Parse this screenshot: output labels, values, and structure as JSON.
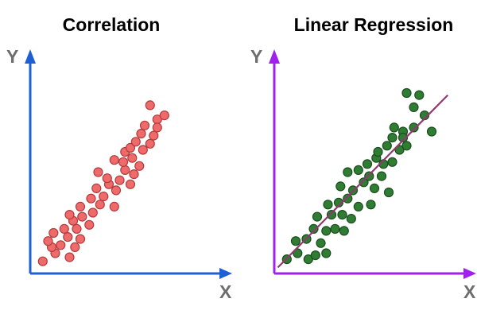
{
  "colors": {
    "left_axis": "#1f5fd6",
    "right_axis": "#a020f0",
    "left_point_fill": "#ef6b6b",
    "left_point_stroke": "#b23b3b",
    "right_point_fill": "#2e7d32",
    "right_point_stroke": "#1b4d1e",
    "regression_line": "#8e3a6e",
    "axis_letter": "#6e6e6e"
  },
  "chart_data": [
    {
      "type": "scatter",
      "title": "Correlation",
      "xlabel": "X",
      "ylabel": "Y",
      "xlim": [
        0,
        100
      ],
      "ylim": [
        0,
        100
      ],
      "grid": false,
      "points": [
        [
          7,
          6
        ],
        [
          14,
          10
        ],
        [
          12,
          13
        ],
        [
          22,
          8
        ],
        [
          10,
          16
        ],
        [
          17,
          14
        ],
        [
          25,
          13
        ],
        [
          21,
          18
        ],
        [
          28,
          17
        ],
        [
          13,
          20
        ],
        [
          19,
          22
        ],
        [
          26,
          22
        ],
        [
          24,
          26
        ],
        [
          33,
          24
        ],
        [
          29,
          28
        ],
        [
          22,
          29
        ],
        [
          35,
          30
        ],
        [
          28,
          33
        ],
        [
          34,
          37
        ],
        [
          39,
          34
        ],
        [
          47,
          33
        ],
        [
          41,
          38
        ],
        [
          37,
          42
        ],
        [
          44,
          44
        ],
        [
          48,
          41
        ],
        [
          50,
          46
        ],
        [
          43,
          47
        ],
        [
          38,
          50
        ],
        [
          53,
          51
        ],
        [
          56,
          44
        ],
        [
          52,
          55
        ],
        [
          47,
          56
        ],
        [
          57,
          57
        ],
        [
          58,
          49
        ],
        [
          61,
          53
        ],
        [
          53,
          60
        ],
        [
          63,
          61
        ],
        [
          56,
          62
        ],
        [
          59,
          65
        ],
        [
          62,
          69
        ],
        [
          67,
          64
        ],
        [
          64,
          73
        ],
        [
          67,
          83
        ],
        [
          69,
          68
        ],
        [
          71,
          76
        ],
        [
          75,
          78
        ],
        [
          71,
          72
        ]
      ]
    },
    {
      "type": "scatter",
      "title": "Linear Regression",
      "xlabel": "X",
      "ylabel": "Y",
      "xlim": [
        0,
        100
      ],
      "ylim": [
        0,
        100
      ],
      "grid": false,
      "trendline": {
        "x": [
          2,
          97
        ],
        "y": [
          3,
          88
        ]
      },
      "points": [
        [
          7,
          7
        ],
        [
          13,
          10
        ],
        [
          19,
          7
        ],
        [
          23,
          9
        ],
        [
          12,
          16
        ],
        [
          18,
          17
        ],
        [
          26,
          15
        ],
        [
          29,
          10
        ],
        [
          22,
          22
        ],
        [
          29,
          21
        ],
        [
          34,
          22
        ],
        [
          39,
          21
        ],
        [
          24,
          28
        ],
        [
          32,
          29
        ],
        [
          38,
          29
        ],
        [
          43,
          27
        ],
        [
          30,
          34
        ],
        [
          36,
          35
        ],
        [
          41,
          37
        ],
        [
          47,
          33
        ],
        [
          54,
          34
        ],
        [
          37,
          43
        ],
        [
          44,
          41
        ],
        [
          50,
          45
        ],
        [
          56,
          42
        ],
        [
          47,
          51
        ],
        [
          53,
          48
        ],
        [
          60,
          48
        ],
        [
          64,
          40
        ],
        [
          41,
          50
        ],
        [
          52,
          54
        ],
        [
          57,
          57
        ],
        [
          61,
          54
        ],
        [
          66,
          55
        ],
        [
          58,
          60
        ],
        [
          63,
          63
        ],
        [
          70,
          61
        ],
        [
          66,
          67
        ],
        [
          72,
          70
        ],
        [
          74,
          63
        ],
        [
          78,
          72
        ],
        [
          78,
          82
        ],
        [
          84,
          78
        ],
        [
          88,
          70
        ],
        [
          81,
          88
        ],
        [
          74,
          89
        ],
        [
          72,
          67
        ],
        [
          67,
          72
        ]
      ]
    }
  ]
}
